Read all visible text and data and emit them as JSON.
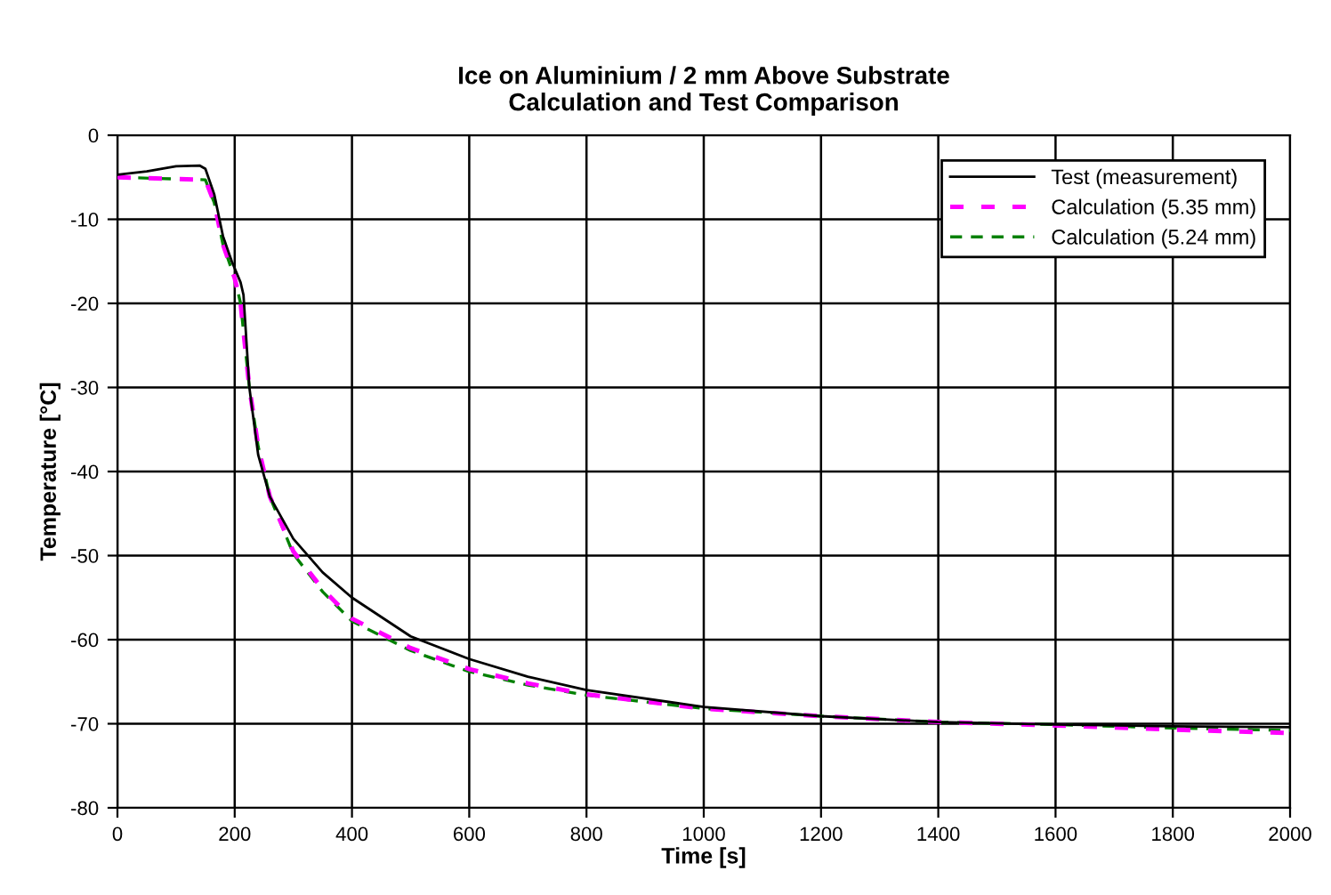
{
  "chart_data": {
    "type": "line",
    "title": "Ice on Aluminium / 2 mm Above Substrate\nCalculation and Test Comparison",
    "xlabel": "Time [s]",
    "ylabel": "Temperature [°C]",
    "xlim": [
      0,
      2000
    ],
    "xticks": [
      0,
      200,
      400,
      600,
      800,
      1000,
      1200,
      1400,
      1600,
      1800,
      2000
    ],
    "ylim": [
      -80,
      0
    ],
    "yticks": [
      -80,
      -70,
      -60,
      -50,
      -40,
      -30,
      -20,
      -10,
      0
    ],
    "grid": true,
    "legend": "top right",
    "marker": "none",
    "series": [
      {
        "name": "Test (measurement)",
        "color": "#000000",
        "line_style": "solid",
        "x": [
          0,
          50,
          100,
          140,
          150,
          165,
          180,
          195,
          210,
          215,
          225,
          240,
          260,
          300,
          350,
          400,
          500,
          600,
          700,
          800,
          1000,
          1200,
          1400,
          1600,
          1800,
          2000
        ],
        "values": [
          -4.7,
          -4.3,
          -3.7,
          -3.6,
          -4,
          -7,
          -12,
          -15,
          -17.5,
          -19,
          -30,
          -38,
          -43,
          -48,
          -52,
          -55,
          -59.6,
          -62.3,
          -64.4,
          -66,
          -68,
          -69.1,
          -69.8,
          -70.1,
          -70.3,
          -70.4
        ]
      },
      {
        "name": "Calculation (5.35 mm)",
        "color": "#ff00ff",
        "line_style": "dashed",
        "x": [
          0,
          150,
          165,
          180,
          200,
          210,
          225,
          240,
          260,
          300,
          350,
          400,
          500,
          600,
          700,
          800,
          1000,
          1200,
          1400,
          1600,
          1800,
          2000
        ],
        "values": [
          -5,
          -5.3,
          -8,
          -13,
          -17,
          -20,
          -30,
          -37,
          -43,
          -49.5,
          -54,
          -57.5,
          -61,
          -63.5,
          -65.2,
          -66.5,
          -68.2,
          -69.1,
          -69.8,
          -70.2,
          -70.7,
          -71.1
        ]
      },
      {
        "name": "Calculation (5.24 mm)",
        "color": "#008000",
        "line_style": "dashed",
        "x": [
          0,
          150,
          165,
          180,
          200,
          210,
          225,
          240,
          260,
          300,
          350,
          400,
          500,
          600,
          700,
          800,
          1000,
          1200,
          1400,
          1600,
          1800,
          2000
        ],
        "values": [
          -5,
          -5.3,
          -8,
          -13,
          -17,
          -20,
          -30,
          -37,
          -43,
          -49.8,
          -54.3,
          -57.8,
          -61.3,
          -63.8,
          -65.4,
          -66.6,
          -68.2,
          -69.1,
          -69.8,
          -70.1,
          -70.5,
          -70.8
        ]
      }
    ]
  }
}
